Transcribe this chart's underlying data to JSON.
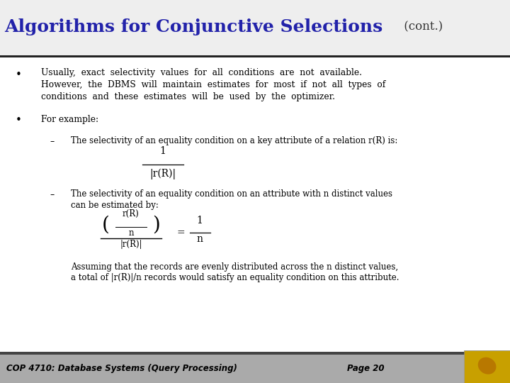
{
  "title_main": "Algorithms for Conjunctive Selections",
  "title_cont": " (cont.)",
  "title_color_main": "#2222aa",
  "title_color_cont": "#333333",
  "slide_bg": "#ffffff",
  "footer_text": "COP 4710: Database Systems (Query Processing)",
  "footer_page": "Page 20",
  "footer_color": "#000000",
  "text_color": "#000000",
  "title_bg_color": "#f0f0f0",
  "footer_bg_color": "#aaaaaa",
  "footer_dark_line": "#333333",
  "logo_bg": "#c8a000"
}
